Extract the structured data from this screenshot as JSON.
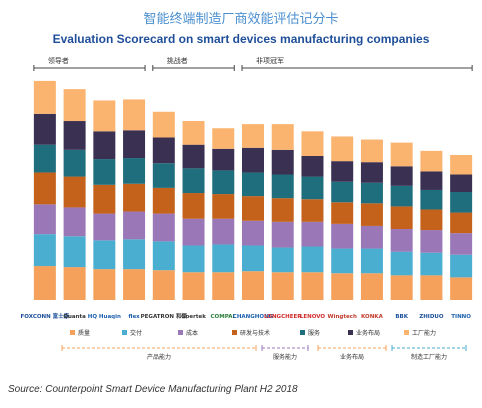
{
  "title_cn": "智能终端制造厂商效能评估记分卡",
  "title_en": "Evaluation Scorecard on smart devices manufacturing companies",
  "source": "Source: Counterpoint Smart Device Manufacturing Plant H2 2018",
  "groups": [
    {
      "label": "领导者"
    },
    {
      "label": "挑战者"
    },
    {
      "label": "非项冠军"
    }
  ],
  "chart_data": {
    "type": "bar",
    "stacked": true,
    "categories": [
      "FOXCONN 富士康",
      "Quanta",
      "HQ Huaqin",
      "flex",
      "PEGATRON 和硕",
      "Goertek",
      "COMPAL",
      "CHANGHONG",
      "LONGCHEER",
      "LENOVO",
      "Wingtech",
      "KONKA",
      "BBK",
      "ZHIDUO",
      "TINNO"
    ],
    "ylim": [
      0,
      210
    ],
    "grid": false,
    "legend_position": "bottom",
    "series": [
      {
        "name": "质量",
        "color": "#f5a15b",
        "values": [
          33,
          32,
          30,
          30,
          29,
          27,
          27,
          28,
          27,
          27,
          26,
          26,
          24,
          24,
          22
        ]
      },
      {
        "name": "交付",
        "color": "#4aaed0",
        "values": [
          31,
          30,
          28,
          29,
          28,
          26,
          27,
          25,
          24,
          25,
          24,
          24,
          23,
          22,
          22
        ]
      },
      {
        "name": "成本",
        "color": "#9a78b8",
        "values": [
          29,
          28,
          26,
          27,
          27,
          26,
          25,
          24,
          25,
          24,
          24,
          22,
          22,
          22,
          21
        ]
      },
      {
        "name": "研发与技术",
        "color": "#c4621c",
        "values": [
          31,
          30,
          28,
          27,
          25,
          25,
          24,
          24,
          23,
          22,
          21,
          22,
          22,
          20,
          20
        ]
      },
      {
        "name": "服务",
        "color": "#1f6e7e",
        "values": [
          27,
          26,
          25,
          25,
          24,
          24,
          23,
          23,
          23,
          22,
          20,
          20,
          20,
          19,
          20
        ]
      },
      {
        "name": "业务布局",
        "color": "#3a3052",
        "values": [
          30,
          28,
          27,
          27,
          25,
          23,
          21,
          24,
          24,
          20,
          20,
          20,
          19,
          18,
          17
        ]
      },
      {
        "name": "工厂能力",
        "color": "#fbb470",
        "values": [
          32,
          31,
          30,
          30,
          25,
          23,
          20,
          23,
          25,
          24,
          24,
          22,
          23,
          20,
          19
        ]
      }
    ],
    "legend_groups": [
      {
        "label": "产品能力",
        "color": "#f5a15b"
      },
      {
        "label": "服务能力",
        "color": "#9a78b8"
      },
      {
        "label": "业务布局",
        "color": "#f5a15b"
      },
      {
        "label": "制造工厂能力",
        "color": "#4aaed0"
      }
    ]
  }
}
